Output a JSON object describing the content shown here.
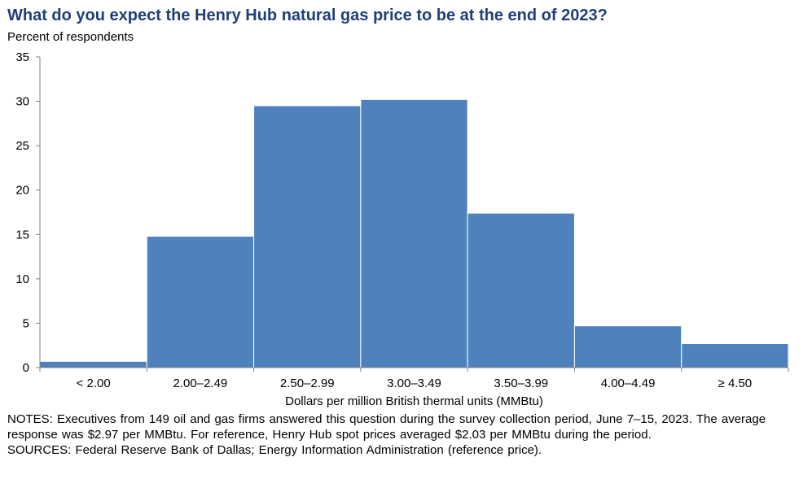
{
  "title": "What do you expect the Henry Hub natural gas price to be at the end of 2023?",
  "y_axis_label": "Percent of respondents",
  "x_axis_label": "Dollars per million British thermal units (MMBtu)",
  "notes": "NOTES: Executives from 149 oil and gas firms answered this question during the survey collection period, June 7–15, 2023. The average response was $2.97 per MMBtu. For reference, Henry Hub spot prices averaged $2.03 per MMBtu during the period.",
  "sources": "SOURCES: Federal Reserve Bank of Dallas; Energy Information Administration (reference price).",
  "chart_data": {
    "type": "bar",
    "title": "What do you expect the Henry Hub natural gas price to be at the end of 2023?",
    "xlabel": "Dollars per million British thermal units (MMBtu)",
    "ylabel": "Percent of respondents",
    "categories": [
      "< 2.00",
      "2.00–2.49",
      "2.50–2.99",
      "3.00–3.49",
      "3.50–3.99",
      "4.00–4.49",
      "≥ 4.50"
    ],
    "values": [
      0.7,
      14.8,
      29.5,
      30.2,
      17.4,
      4.7,
      2.7
    ],
    "ylim": [
      0,
      35
    ],
    "yticks": [
      0,
      5,
      10,
      15,
      20,
      25,
      30,
      35
    ],
    "grid": false,
    "legend": "none",
    "bar_color": "#4f81bd"
  }
}
